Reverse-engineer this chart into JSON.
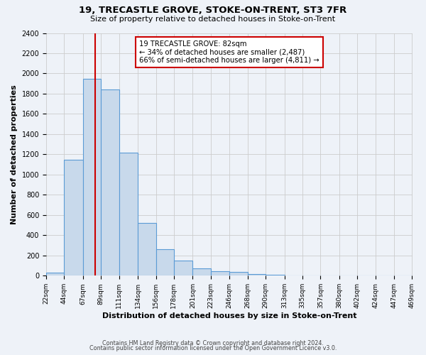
{
  "title": "19, TRECASTLE GROVE, STOKE-ON-TRENT, ST3 7FR",
  "subtitle": "Size of property relative to detached houses in Stoke-on-Trent",
  "xlabel": "Distribution of detached houses by size in Stoke-on-Trent",
  "ylabel": "Number of detached properties",
  "bin_edges": [
    22,
    44,
    67,
    89,
    111,
    134,
    156,
    178,
    201,
    223,
    246,
    268,
    290,
    313,
    335,
    357,
    380,
    402,
    424,
    447,
    469
  ],
  "bin_labels": [
    "22sqm",
    "44sqm",
    "67sqm",
    "89sqm",
    "111sqm",
    "134sqm",
    "156sqm",
    "178sqm",
    "201sqm",
    "223sqm",
    "246sqm",
    "268sqm",
    "290sqm",
    "313sqm",
    "335sqm",
    "357sqm",
    "380sqm",
    "402sqm",
    "424sqm",
    "447sqm",
    "469sqm"
  ],
  "counts": [
    30,
    1150,
    1950,
    1840,
    1220,
    520,
    265,
    148,
    75,
    45,
    35,
    15,
    10,
    5,
    3,
    2,
    2,
    1,
    1,
    0
  ],
  "bar_facecolor": "#c8d9eb",
  "bar_edgecolor": "#5b9bd5",
  "property_value": 82,
  "vline_color": "#cc0000",
  "annotation_line1": "19 TRECASTLE GROVE: 82sqm",
  "annotation_line2": "← 34% of detached houses are smaller (2,487)",
  "annotation_line3": "66% of semi-detached houses are larger (4,811) →",
  "annotation_box_edgecolor": "#cc0000",
  "annotation_box_facecolor": "#ffffff",
  "ylim": [
    0,
    2400
  ],
  "yticks": [
    0,
    200,
    400,
    600,
    800,
    1000,
    1200,
    1400,
    1600,
    1800,
    2000,
    2200,
    2400
  ],
  "grid_color": "#cccccc",
  "background_color": "#eef2f8",
  "footer1": "Contains HM Land Registry data © Crown copyright and database right 2024.",
  "footer2": "Contains public sector information licensed under the Open Government Licence v3.0."
}
